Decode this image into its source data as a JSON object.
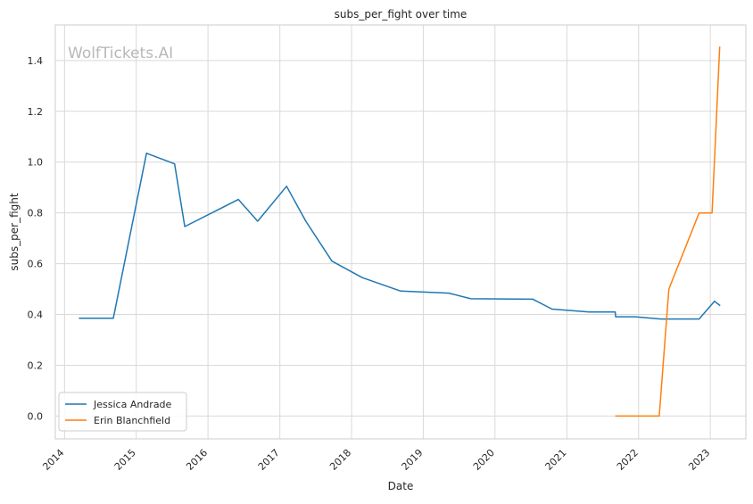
{
  "chart_data": {
    "type": "line",
    "title": "subs_per_fight over time",
    "xlabel": "Date",
    "ylabel": "subs_per_fight",
    "watermark": "WolfTickets.AI",
    "xlim": [
      "2013-11-15",
      "2023-07-01"
    ],
    "ylim": [
      -0.09,
      1.54
    ],
    "x_ticks": [
      "2014",
      "2015",
      "2016",
      "2017",
      "2018",
      "2019",
      "2020",
      "2021",
      "2022",
      "2023"
    ],
    "y_ticks": [
      "0.0",
      "0.2",
      "0.4",
      "0.6",
      "0.8",
      "1.0",
      "1.2",
      "1.4"
    ],
    "grid": true,
    "legend_position": "lower-left",
    "series": [
      {
        "name": "Jessica Andrade",
        "color": "#1f77b4",
        "points": [
          [
            "2014-03-15",
            0.385
          ],
          [
            "2014-09-06",
            0.385
          ],
          [
            "2015-02-22",
            1.035
          ],
          [
            "2015-07-15",
            0.993
          ],
          [
            "2015-09-05",
            0.746
          ],
          [
            "2016-06-04",
            0.853
          ],
          [
            "2016-09-10",
            0.767
          ],
          [
            "2017-02-04",
            0.905
          ],
          [
            "2017-05-13",
            0.767
          ],
          [
            "2017-09-23",
            0.61
          ],
          [
            "2018-02-24",
            0.545
          ],
          [
            "2018-09-08",
            0.492
          ],
          [
            "2019-05-11",
            0.484
          ],
          [
            "2019-08-31",
            0.462
          ],
          [
            "2020-07-12",
            0.46
          ],
          [
            "2020-10-17",
            0.421
          ],
          [
            "2021-04-24",
            0.41
          ],
          [
            "2021-09-04",
            0.41
          ],
          [
            "2021-09-06",
            0.391
          ],
          [
            "2021-12-15",
            0.391
          ],
          [
            "2022-04-23",
            0.382
          ],
          [
            "2022-11-05",
            0.382
          ],
          [
            "2023-01-22",
            0.452
          ],
          [
            "2023-02-20",
            0.435
          ]
        ]
      },
      {
        "name": "Erin Blanchfield",
        "color": "#ff7f0e",
        "points": [
          [
            "2021-09-04",
            0.0
          ],
          [
            "2022-04-16",
            0.0
          ],
          [
            "2022-06-04",
            0.5
          ],
          [
            "2022-11-05",
            0.8
          ],
          [
            "2023-01-10",
            0.8
          ],
          [
            "2023-02-18",
            1.455
          ]
        ]
      }
    ]
  }
}
